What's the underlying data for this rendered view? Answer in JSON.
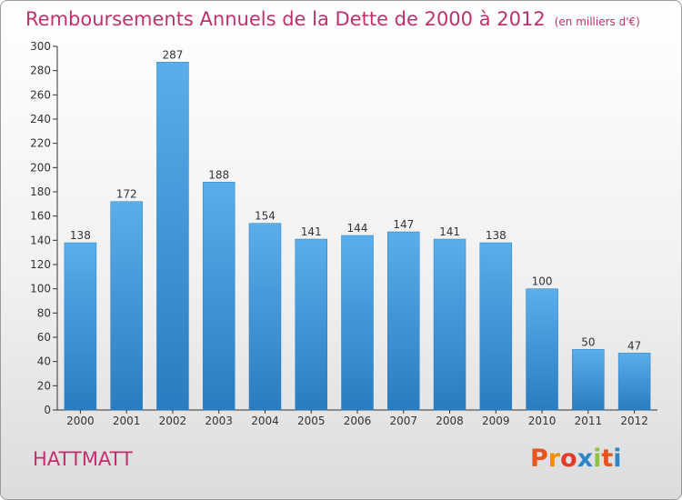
{
  "header": {
    "title": "Remboursements Annuels de la Dette de 2000 à 2012",
    "subtitle": "(en milliers d'€)"
  },
  "commune": "HATTMATT",
  "logo": {
    "text": "Proxiti",
    "letter_colors": [
      "#e8541e",
      "#f29100",
      "#e33b2a",
      "#2b86c8",
      "#8cc63e",
      "#e8541e",
      "#2b86c8"
    ]
  },
  "colors": {
    "accent": "#c0306e",
    "bar_top": "#5aaeea",
    "bar_bottom": "#2a7cc0",
    "axis": "#333333",
    "grid": "#dddddd"
  },
  "chart_data": {
    "type": "bar",
    "title": "Remboursements Annuels de la Dette de 2000 à 2012",
    "subtitle": "(en milliers d'€)",
    "categories": [
      "2000",
      "2001",
      "2002",
      "2003",
      "2004",
      "2005",
      "2006",
      "2007",
      "2008",
      "2009",
      "2010",
      "2011",
      "2012"
    ],
    "values": [
      138,
      172,
      287,
      188,
      154,
      141,
      144,
      147,
      141,
      138,
      100,
      50,
      47
    ],
    "ylim": [
      0,
      300
    ],
    "yticks": [
      0,
      20,
      40,
      60,
      80,
      100,
      120,
      140,
      160,
      180,
      200,
      220,
      240,
      260,
      280,
      300
    ],
    "grid": false,
    "legend": "none"
  }
}
